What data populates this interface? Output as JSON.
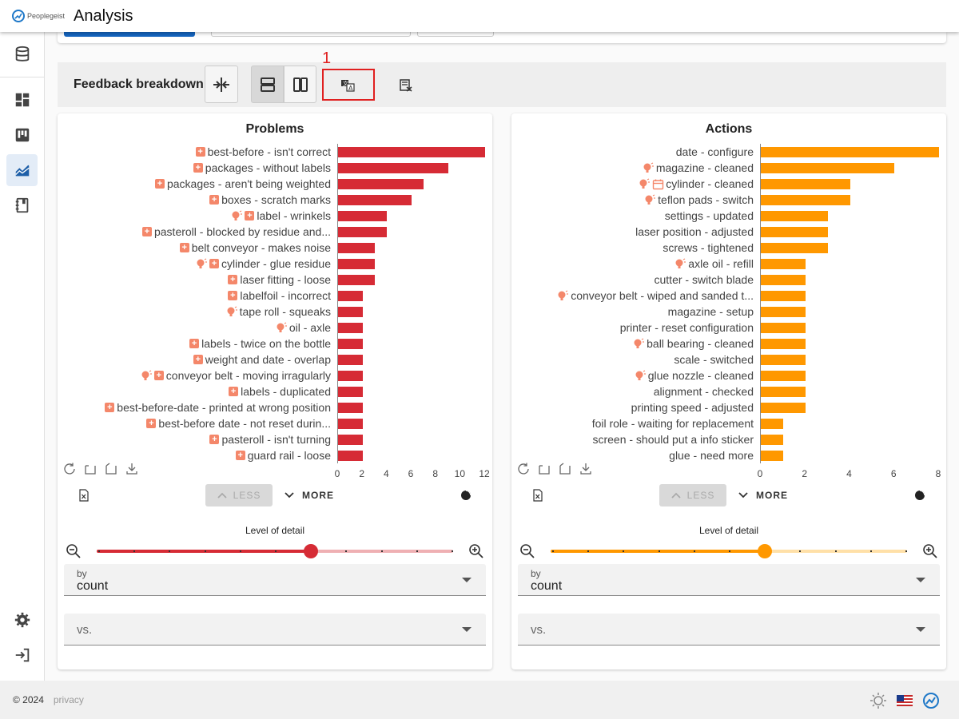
{
  "app": {
    "logo_text": "Peoplegeist",
    "title": "Analysis"
  },
  "toolbar": {
    "title": "Feedback breakdown",
    "highlight_number": "1"
  },
  "footer": {
    "copyright": "© 2024",
    "privacy": "privacy"
  },
  "colors": {
    "problems_bar": "#d62b35",
    "actions_bar": "#ff9800",
    "accent": "#1e78c8",
    "marker": "#f4876a"
  },
  "icons": {
    "rail": [
      "database-icon",
      "dashboard-icon",
      "kanban-icon",
      "analysis-icon",
      "notebook-icon",
      "settings-icon",
      "logout-icon"
    ],
    "toolbar": [
      "compress-icon",
      "rows-layout-icon",
      "columns-layout-icon",
      "translate-icon",
      "clear-notes-icon"
    ]
  },
  "panels": [
    {
      "title": "Problems",
      "chart_data": {
        "type": "bar",
        "orientation": "horizontal",
        "categories": [
          "best-before - isn't correct",
          "packages - without labels",
          "packages - aren't being weighted",
          "boxes - scratch marks",
          "label - wrinkels",
          "pasteroll - blocked by residue and...",
          "belt conveyor - makes noise",
          "cylinder - glue residue",
          "laser fitting - loose",
          "labelfoil - incorrect",
          "tape roll - squeaks",
          "oil - axle",
          "labels - twice on the bottle",
          "weight and date - overlap",
          "conveyor belt - moving irragularly",
          "labels - duplicated",
          "best-before-date - printed at wrong position",
          "best-before date - not reset durin...",
          "pasteroll - isn't turning",
          "guard rail - loose"
        ],
        "values": [
          12,
          9,
          7,
          6,
          4,
          4,
          3,
          3,
          3,
          2,
          2,
          2,
          2,
          2,
          2,
          2,
          2,
          2,
          2,
          2
        ],
        "markers": [
          [
            "plus"
          ],
          [
            "plus"
          ],
          [
            "plus"
          ],
          [
            "plus"
          ],
          [
            "bulb",
            "plus"
          ],
          [
            "plus"
          ],
          [
            "plus"
          ],
          [
            "bulb",
            "plus"
          ],
          [
            "plus"
          ],
          [
            "plus"
          ],
          [
            "bulb"
          ],
          [
            "bulb"
          ],
          [
            "plus"
          ],
          [
            "plus"
          ],
          [
            "bulb",
            "plus"
          ],
          [
            "plus"
          ],
          [
            "plus"
          ],
          [
            "plus"
          ],
          [
            "plus"
          ],
          [
            "plus"
          ]
        ],
        "xticks": [
          "0",
          "2",
          "4",
          "6",
          "8",
          "10",
          "12"
        ],
        "xlim": [
          0,
          12
        ]
      },
      "less_label": "LESS",
      "more_label": "MORE",
      "level_of_detail_label": "Level of detail",
      "slider_value": 0.6,
      "by_label": "by",
      "by_value": "count",
      "vs_placeholder": "vs."
    },
    {
      "title": "Actions",
      "chart_data": {
        "type": "bar",
        "orientation": "horizontal",
        "categories": [
          "date - configure",
          "magazine - cleaned",
          "cylinder - cleaned",
          "teflon pads - switch",
          "settings - updated",
          "laser position - adjusted",
          "screws - tightened",
          "axle oil - refill",
          "cutter - switch blade",
          "conveyor belt - wiped and sanded t...",
          "magazine - setup",
          "printer - reset configuration",
          "ball bearing - cleaned",
          "scale - switched",
          "glue nozzle - cleaned",
          "alignment - checked",
          "printing speed - adjusted",
          "foil role - waiting for replacement",
          "screen - should put a info sticker",
          "glue - need more"
        ],
        "values": [
          8,
          6,
          4,
          4,
          3,
          3,
          3,
          2,
          2,
          2,
          2,
          2,
          2,
          2,
          2,
          2,
          2,
          1,
          1,
          1
        ],
        "markers": [
          [],
          [
            "bulb"
          ],
          [
            "bulb",
            "calendar"
          ],
          [
            "bulb"
          ],
          [],
          [],
          [],
          [
            "bulb"
          ],
          [],
          [
            "bulb"
          ],
          [],
          [],
          [
            "bulb"
          ],
          [],
          [
            "bulb"
          ],
          [],
          [],
          [],
          [],
          []
        ],
        "xticks": [
          "0",
          "2",
          "4",
          "6",
          "8"
        ],
        "xlim": [
          0,
          8
        ]
      },
      "less_label": "LESS",
      "more_label": "MORE",
      "level_of_detail_label": "Level of detail",
      "slider_value": 0.6,
      "by_label": "by",
      "by_value": "count",
      "vs_placeholder": "vs."
    }
  ]
}
